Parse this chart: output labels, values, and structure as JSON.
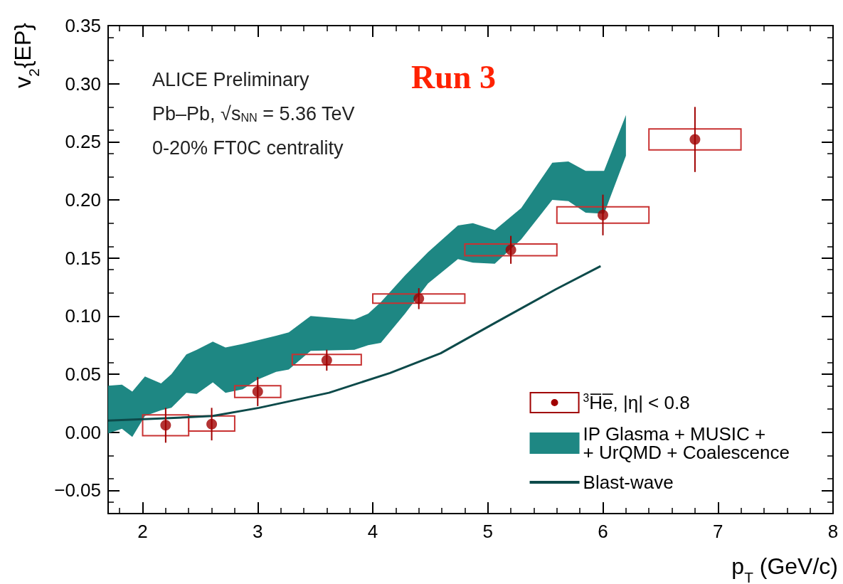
{
  "chart_data": {
    "type": "scatter",
    "xlabel": "p$_{T}$ (GeV/c)",
    "ylabel": "v$_{2}${EP}",
    "annotations": [
      "ALICE Preliminary",
      "Pb–Pb, √s$_{NN}$ = 5.36 TeV",
      "0-20% FT0C centrality",
      "Run 3"
    ],
    "xlim": [
      1.7,
      8
    ],
    "ylim": [
      -0.07,
      0.35
    ],
    "xticks": [
      2,
      3,
      4,
      5,
      6,
      7,
      8
    ],
    "yticks": [
      {
        "value": -0.05,
        "label": "−0.05"
      },
      {
        "value": 0,
        "label": "0.00"
      },
      {
        "value": 0.05,
        "label": "0.05"
      },
      {
        "value": 0.1,
        "label": "0.10"
      },
      {
        "value": 0.15,
        "label": "0.15"
      },
      {
        "value": 0.2,
        "label": "0.20"
      },
      {
        "value": 0.25,
        "label": "0.25"
      },
      {
        "value": 0.3,
        "label": "0.30"
      },
      {
        "value": 0.35,
        "label": "0.35"
      }
    ],
    "grid": false,
    "legend": "bottom right",
    "series": [
      {
        "name": "$^{3}$H̅e̅, |η| < 0.8",
        "marker": "circle",
        "color": "#a00000",
        "x": [
          2.2,
          2.6,
          3.0,
          3.6,
          4.4,
          5.2,
          6.0,
          6.8
        ],
        "values": [
          0.006,
          0.007,
          0.035,
          0.062,
          0.115,
          0.157,
          0.187,
          0.252
        ],
        "errors": [
          0.015,
          0.014,
          0.0125,
          0.009,
          0.009,
          0.012,
          0.0175,
          0.028
        ]
      },
      {
        "type": "bar",
        "color": "#c83232",
        "x": [
          2.2,
          2.6,
          3.0,
          3.6,
          4.4,
          5.2,
          6.0,
          6.8
        ],
        "base": [
          -0.003,
          0.001,
          0.03,
          0.058,
          0.111,
          0.152,
          0.18,
          0.243
        ],
        "values": [
          0.018,
          0.013,
          0.01,
          0.009,
          0.008,
          0.01,
          0.014,
          0.018
        ]
      },
      {
        "name": "IP Glasma + MUSIC +\n+ UrQMD + Coalescence",
        "type": "area",
        "color": "#1e8783",
        "x": [
          1.7,
          1.82,
          1.91,
          2.02,
          2.16,
          2.25,
          2.38,
          2.47,
          2.61,
          2.72,
          2.87,
          2.99,
          3.16,
          3.27,
          3.46,
          3.84,
          3.96,
          4.07,
          4.28,
          4.48,
          4.74,
          4.87,
          5.06,
          5.29,
          5.56,
          5.7,
          5.85,
          6.01,
          6.2
        ],
        "values": [
          null,
          null,
          null,
          null,
          null,
          null,
          null,
          null,
          null,
          null,
          null,
          null,
          null,
          null,
          null,
          null,
          null,
          null,
          null,
          null,
          null,
          null,
          null,
          null,
          null,
          null,
          null,
          null,
          null
        ],
        "lower": [
          -0.001,
          0.003,
          -0.004,
          0.014,
          0.019,
          0.021,
          0.034,
          0.033,
          0.043,
          0.034,
          0.037,
          0.045,
          0.052,
          0.054,
          0.07,
          0.071,
          0.075,
          0.077,
          0.102,
          0.128,
          0.149,
          0.146,
          0.145,
          0.166,
          0.2,
          0.199,
          0.189,
          0.188,
          0.238
        ],
        "upper": [
          0.04,
          0.041,
          0.035,
          0.048,
          0.042,
          0.05,
          0.067,
          0.071,
          0.078,
          0.073,
          0.076,
          0.079,
          0.083,
          0.086,
          0.1,
          0.097,
          0.102,
          0.112,
          0.135,
          0.155,
          0.178,
          0.18,
          0.174,
          0.193,
          0.232,
          0.233,
          0.225,
          0.225,
          0.273
        ]
      },
      {
        "name": "Blast-wave",
        "type": "line",
        "line_style": "solid",
        "color": "#0d4a4a",
        "x": [
          1.7,
          2.2,
          2.61,
          3.01,
          3.62,
          4.15,
          4.59,
          5.06,
          5.59,
          5.98
        ],
        "values": [
          0.01,
          0.012,
          0.014,
          0.021,
          0.034,
          0.051,
          0.068,
          0.094,
          0.123,
          0.143
        ]
      }
    ]
  }
}
